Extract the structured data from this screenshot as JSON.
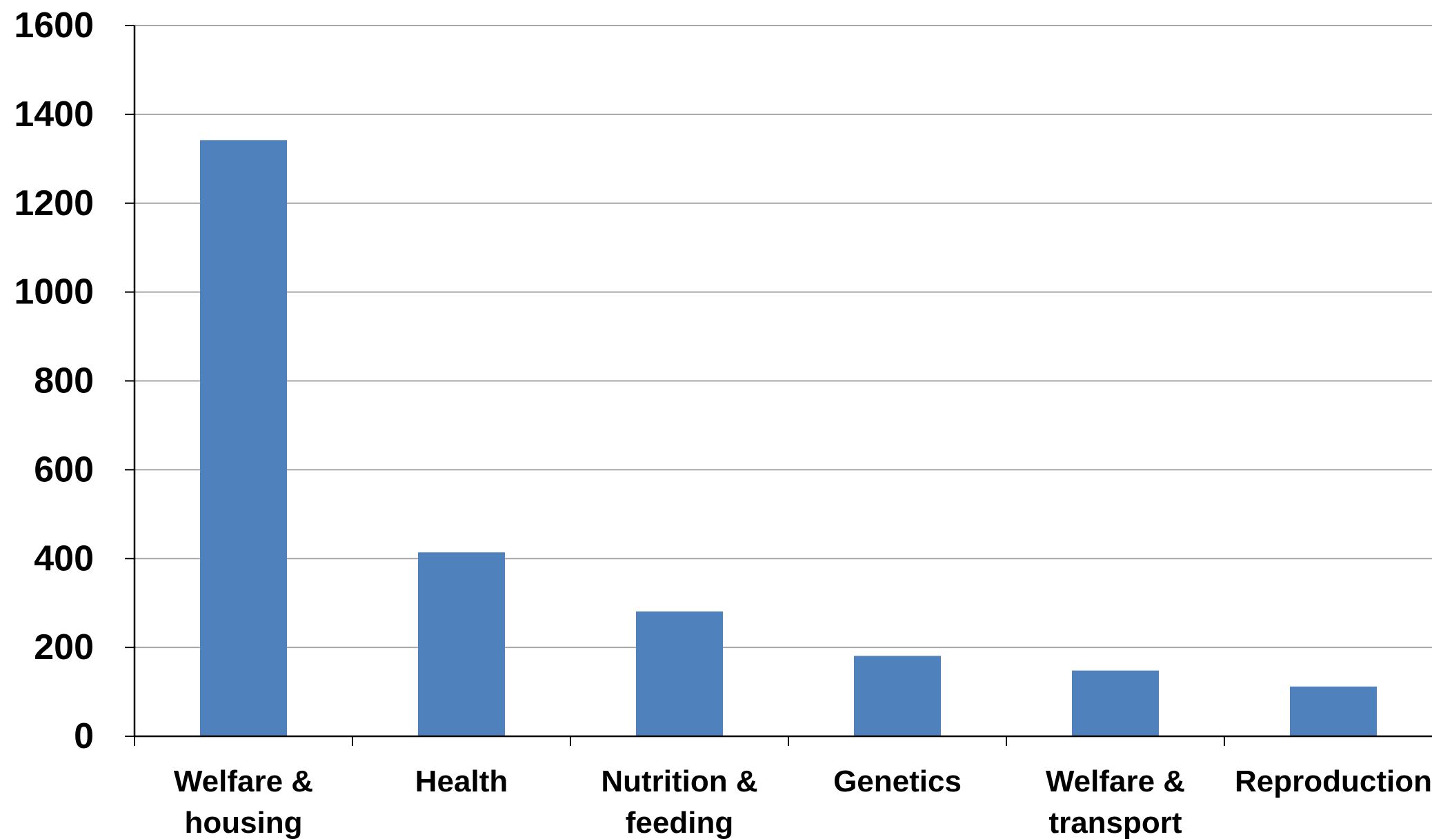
{
  "chart_data": {
    "type": "bar",
    "title": "",
    "xlabel": "",
    "ylabel": "",
    "categories": [
      [
        "Welfare &",
        "housing"
      ],
      [
        "Health"
      ],
      [
        "Nutrition &",
        "feeding"
      ],
      [
        "Genetics"
      ],
      [
        "Welfare &",
        "transport"
      ],
      [
        "Reproduction"
      ]
    ],
    "values": [
      1342,
      414,
      281,
      181,
      148,
      112
    ],
    "ylim": [
      0,
      1600
    ],
    "yticks": [
      0,
      200,
      400,
      600,
      800,
      1000,
      1200,
      1400,
      1600
    ],
    "grid": true,
    "legend": "none",
    "colors": {
      "bar": "#4f81bd",
      "grid": "#a6a6a6",
      "axis": "#000000"
    }
  }
}
